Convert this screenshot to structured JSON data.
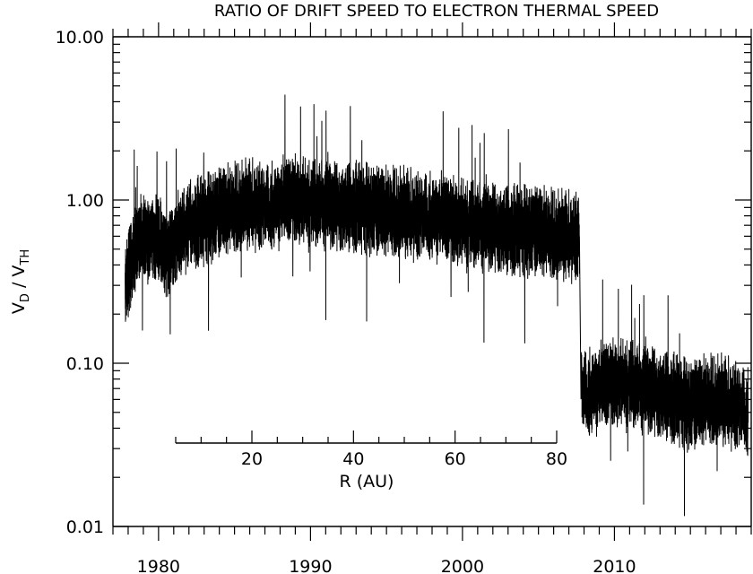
{
  "chart_data": {
    "type": "line",
    "title": "RATIO OF DRIFT SPEED TO ELECTRON THERMAL SPEED",
    "ylabel": {
      "main": "V",
      "sub1": "D",
      "sep": " / V",
      "sub2": "TH"
    },
    "xlabel": "",
    "x_axis": {
      "range": [
        1977,
        2019
      ],
      "tick_labels": [
        "1980",
        "1990",
        "2000",
        "2010"
      ],
      "tick_values": [
        1980,
        1990,
        2000,
        2010
      ],
      "minor_step": 1
    },
    "y_axis": {
      "scale": "log",
      "range": [
        0.01,
        10
      ],
      "tick_labels": [
        "0.01",
        "0.10",
        "1.00",
        "10.00"
      ],
      "tick_values": [
        0.01,
        0.1,
        1,
        10
      ]
    },
    "inset_axis": {
      "label": "R (AU)",
      "range": [
        5,
        80
      ],
      "tick_labels": [
        "20",
        "40",
        "60",
        "80"
      ],
      "tick_values": [
        20,
        40,
        60,
        80
      ]
    },
    "series": [
      {
        "x": [
          1977.8,
          1978.5,
          1979.3,
          1980.0,
          1980.5,
          1981.2,
          1982.0,
          1983.0,
          1984.0,
          1985.0,
          1986.0,
          1987.0,
          1988.0,
          1989.0,
          1990.0,
          1991.0,
          1992.0,
          1993.0,
          1994.0,
          1995.0,
          1996.0,
          1997.0,
          1998.0,
          1999.0,
          2000.0,
          2001.0,
          2002.0,
          2003.0,
          2004.0,
          2005.0,
          2006.0,
          2007.0,
          2007.7,
          2007.8,
          2008.0,
          2009.0,
          2010.0,
          2011.0,
          2012.0,
          2013.0,
          2014.0,
          2015.0,
          2016.0,
          2017.0,
          2018.0,
          2018.8
        ],
        "y": [
          0.3,
          0.55,
          0.6,
          0.55,
          0.45,
          0.6,
          0.7,
          0.75,
          0.85,
          0.9,
          0.95,
          0.9,
          0.95,
          1.0,
          0.95,
          0.95,
          0.9,
          0.9,
          0.88,
          0.85,
          0.85,
          0.8,
          0.8,
          0.75,
          0.72,
          0.7,
          0.68,
          0.65,
          0.65,
          0.65,
          0.62,
          0.6,
          0.6,
          0.07,
          0.065,
          0.07,
          0.075,
          0.075,
          0.07,
          0.065,
          0.06,
          0.055,
          0.06,
          0.06,
          0.055,
          0.05
        ]
      }
    ]
  }
}
